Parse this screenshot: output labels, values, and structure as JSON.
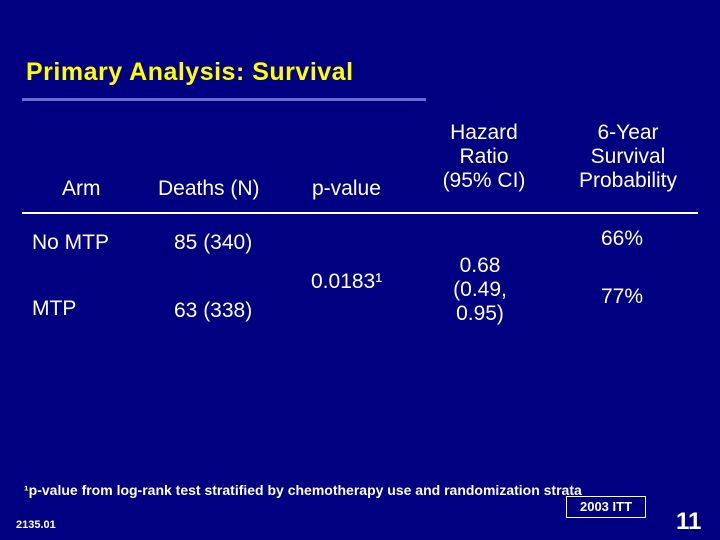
{
  "title": "Primary Analysis: Survival",
  "headers": {
    "arm": "Arm",
    "deaths": "Deaths (N)",
    "pvalue": "p-value",
    "hr": [
      "Hazard",
      "Ratio",
      "(95% CI)"
    ],
    "survival": [
      "6-Year",
      "Survival",
      "Probability"
    ]
  },
  "rows": [
    {
      "arm": "No MTP",
      "deaths": "85 (340)",
      "survival": "66%"
    },
    {
      "arm": "MTP",
      "deaths": "63 (338)",
      "survival": "77%"
    }
  ],
  "shared": {
    "pvalue": "0.0183¹",
    "hr": [
      "0.68",
      "(0.49,",
      "0.95)"
    ]
  },
  "footnote": "¹p-value from log-rank test stratified by chemotherapy use and randomization strata",
  "stamp": "2003 ITT",
  "slide_code": "2135.01",
  "page_number": "11"
}
